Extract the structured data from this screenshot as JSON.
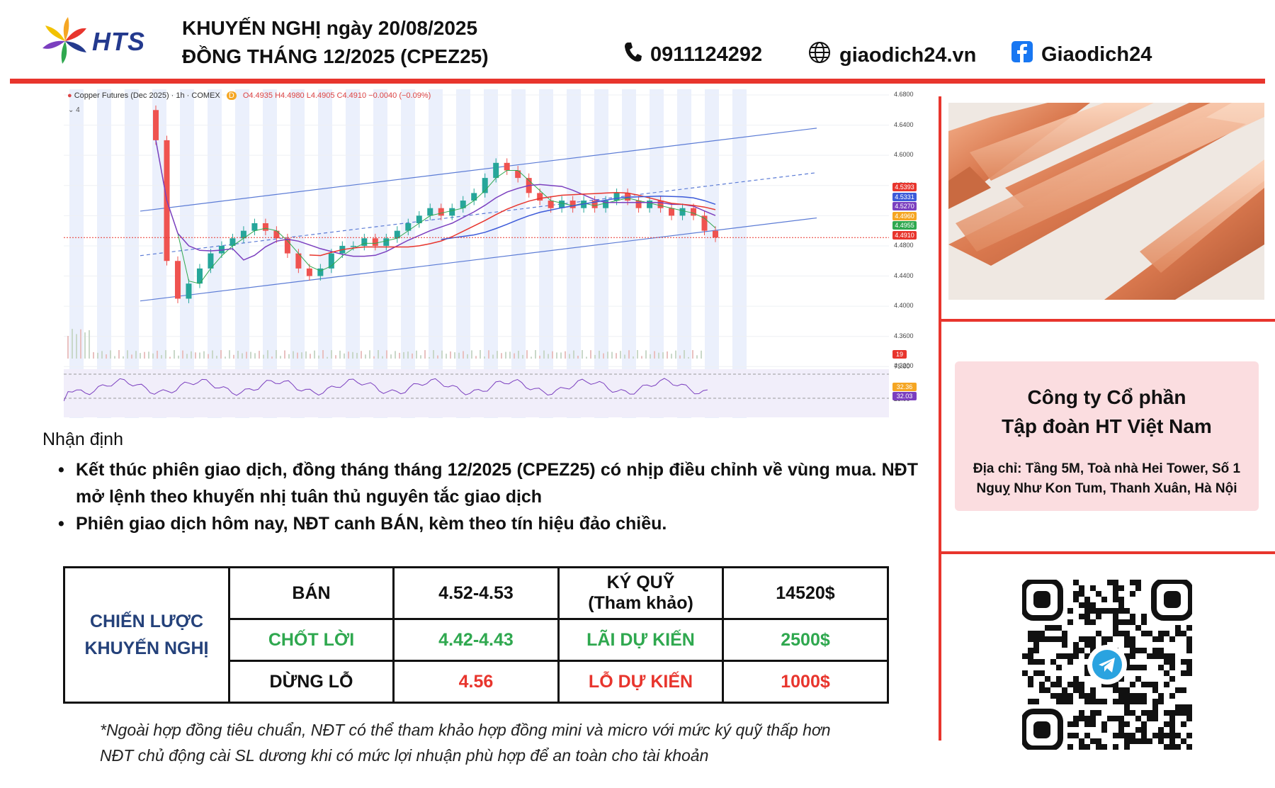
{
  "header": {
    "brand": "HTS",
    "title_line1": "KHUYẾN NGHỊ ngày 20/08/2025",
    "title_line2": "ĐỒNG THÁNG 12/2025 (CPEZ25)",
    "phone": "0911124292",
    "website": "giaodich24.vn",
    "facebook": "Giaodich24",
    "icons": [
      "phone-icon",
      "globe-icon",
      "facebook-icon"
    ]
  },
  "chart": {
    "header_text": "Copper Futures (Dec 2025) · 1h · COMEX",
    "ohlc_text": "O4.4935 H4.4980 L4.4905 C4.4910 −0.0040 (−0.09%)",
    "interval_badge": "D",
    "collapse_label": "4",
    "price_tags": [
      {
        "label": "4.5393",
        "color": "#e8352d"
      },
      {
        "label": "4.5331",
        "color": "#3d5bd9"
      },
      {
        "label": "4.5270",
        "color": "#7b3fbf"
      },
      {
        "label": "4.4960",
        "color": "#f5a623"
      },
      {
        "label": "4.4955",
        "color": "#2fa84f"
      },
      {
        "label": "4.4910",
        "color": "#e8352d"
      }
    ],
    "rsi_tags": [
      {
        "label": "32.36",
        "color": "#f5a623"
      },
      {
        "label": "32.03",
        "color": "#7b3fbf"
      }
    ],
    "volume_tag": "19",
    "rsi_levels": [
      "75.00",
      "25.00"
    ]
  },
  "chart_data": {
    "type": "candlestick",
    "title": "Copper Futures (Dec 2025) · 1h · COMEX",
    "ylim": [
      4.34,
      4.68
    ],
    "y_ticks": [
      "4.6800",
      "4.6400",
      "4.6000",
      "4.5600",
      "4.5200",
      "4.4800",
      "4.4400",
      "4.4000",
      "4.3600",
      "4.3200"
    ],
    "close_series": [
      4.62,
      4.46,
      4.41,
      4.43,
      4.45,
      4.47,
      4.48,
      4.49,
      4.5,
      4.51,
      4.5,
      4.49,
      4.47,
      4.45,
      4.44,
      4.45,
      4.47,
      4.48,
      4.48,
      4.49,
      4.48,
      4.49,
      4.5,
      4.51,
      4.52,
      4.53,
      4.52,
      4.53,
      4.54,
      4.55,
      4.57,
      4.59,
      4.58,
      4.57,
      4.55,
      4.54,
      4.53,
      4.54,
      4.53,
      4.54,
      4.53,
      4.54,
      4.55,
      4.54,
      4.53,
      4.54,
      4.53,
      4.52,
      4.53,
      4.52,
      4.5,
      4.491
    ],
    "channel": {
      "upper_start": 4.526,
      "upper_end": 4.636,
      "lower_start": 4.407,
      "lower_end": 4.517,
      "mid_start": 4.467,
      "mid_end": 4.577
    },
    "ma_last": {
      "red": 4.5393,
      "blue": 4.5331,
      "purple": 4.527
    }
  },
  "analysis": {
    "title": "Nhận định",
    "bullets": [
      "Kết thúc phiên giao dịch, đồng tháng tháng 12/2025 (CPEZ25) có nhịp điều chỉnh về vùng mua. NĐT mở lệnh theo khuyến nhị tuân thủ nguyên tắc giao dịch",
      "Phiên giao dịch hôm nay, NĐT canh BÁN, kèm theo tín hiệu đảo chiều."
    ]
  },
  "strategy": {
    "label_line1": "CHIẾN LƯỢC",
    "label_line2": "KHUYẾN NGHỊ",
    "rows": [
      {
        "action": "BÁN",
        "price": "4.52-4.53",
        "metric_line1": "KÝ QUỸ",
        "metric_line2": "(Tham khảo)",
        "value": "14520$"
      },
      {
        "action": "CHỐT LỜI",
        "price": "4.42-4.43",
        "metric_line1": "LÃI DỰ KIẾN",
        "metric_line2": "",
        "value": "2500$"
      },
      {
        "action": "DỪNG LỖ",
        "price": "4.56",
        "metric_line1": "LỖ DỰ KIẾN",
        "metric_line2": "",
        "value": "1000$"
      }
    ]
  },
  "note": {
    "line1": "*Ngoài hợp đồng tiêu chuẩn, NĐT có thể tham khảo hợp đồng mini và micro với mức ký quỹ thấp hơn",
    "line2": "NĐT chủ động cài SL dương khi có mức lợi nhuận phù hợp để an toàn cho tài khoản"
  },
  "company": {
    "name_line1": "Công ty Cổ phần",
    "name_line2": "Tập đoàn HT Việt Nam",
    "address_line1": "Địa chỉ: Tầng 5M, Toà nhà Hei Tower, Số 1",
    "address_line2": "Nguỵ Như Kon Tum, Thanh Xuân, Hà Nội"
  },
  "colors": {
    "accent_red": "#e8352d",
    "brand_blue": "#243a8e",
    "strategy_blue": "#24417a",
    "profit_green": "#2fa84f",
    "company_bg": "#fbdde0"
  }
}
